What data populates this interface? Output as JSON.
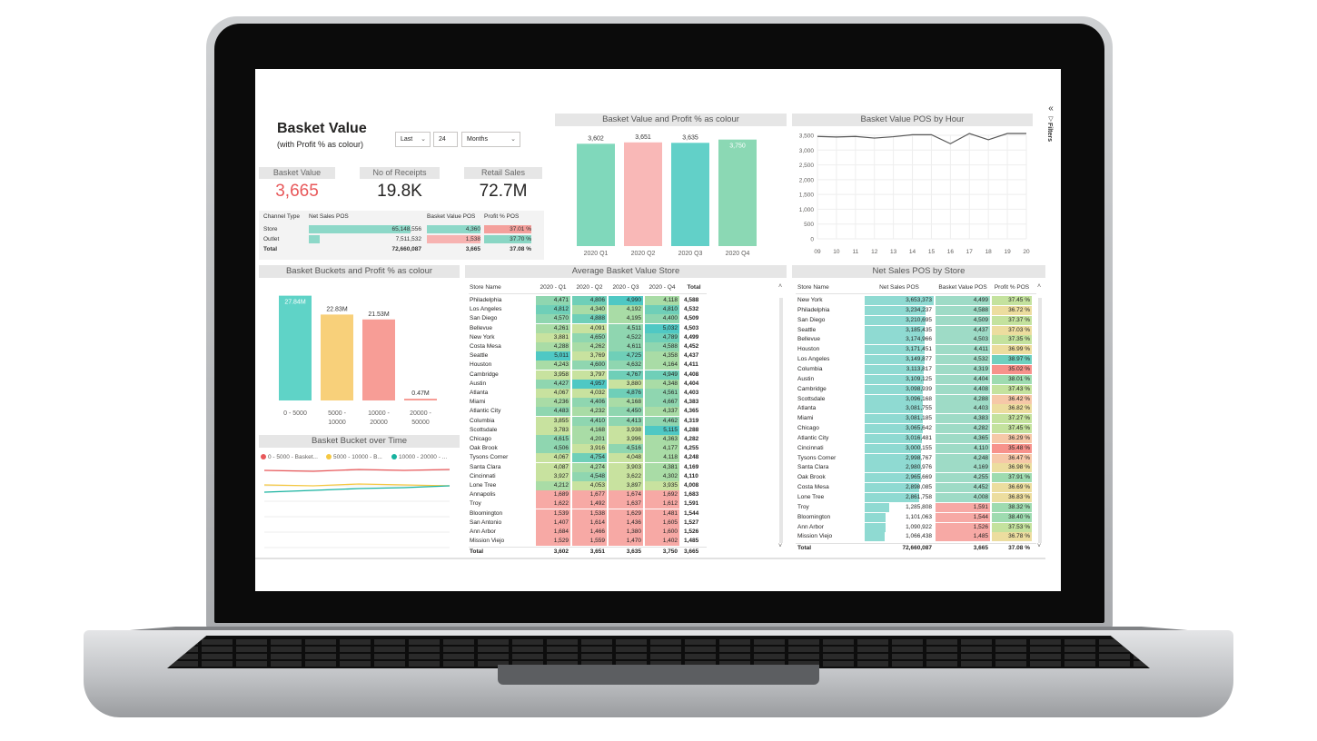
{
  "header": {
    "title": "Basket Value",
    "subtitle": "(with Profit % as colour)"
  },
  "filter_controls": {
    "period": "Last",
    "count": "24",
    "unit": "Months"
  },
  "filters_pane": {
    "label": "Filters",
    "collapse_glyph": "«"
  },
  "kpis": [
    {
      "label": "Basket Value",
      "value": "3,665",
      "color": "#e8585a"
    },
    {
      "label": "No of Receipts",
      "value": "19.8K",
      "color": "#252423"
    },
    {
      "label": "Retail Sales",
      "value": "72.7M",
      "color": "#252423"
    }
  ],
  "channel_table": {
    "headers": [
      "Channel Type",
      "Net Sales POS",
      "Basket Value POS",
      "Profit % POS"
    ],
    "rows": [
      {
        "name": "Store",
        "net": "65,148,556",
        "net_fraction": 0.9,
        "basket": "4,360",
        "profit": "37.01 %",
        "basket_color": "#8dd8c8",
        "profit_color": "#f4a09c"
      },
      {
        "name": "Outlet",
        "net": "7,511,532",
        "net_fraction": 0.1,
        "basket": "1,538",
        "profit": "37.70 %",
        "basket_color": "#f7b3b1",
        "profit_color": "#8ad6c4"
      }
    ],
    "total": {
      "name": "Total",
      "net": "72,660,087",
      "basket": "3,665",
      "profit": "37.08 %"
    }
  },
  "quarter_chart": {
    "title": "Basket Value and Profit % as colour",
    "chart_data": {
      "type": "bar",
      "categories": [
        "2020 Q1",
        "2020 Q2",
        "2020 Q3",
        "2020 Q4"
      ],
      "values": [
        3602,
        3651,
        3635,
        3750
      ],
      "labels": [
        "3,602",
        "3,651",
        "3,635",
        "3,750"
      ],
      "colors": [
        "#80d8bb",
        "#f9b8b7",
        "#62d0c8",
        "#8bd8b4"
      ],
      "ylim": [
        0,
        3900
      ]
    }
  },
  "hour_chart": {
    "title": "Basket Value POS by Hour",
    "chart_data": {
      "type": "line",
      "x": [
        "09",
        "10",
        "11",
        "12",
        "13",
        "14",
        "15",
        "16",
        "17",
        "18",
        "19",
        "20"
      ],
      "values": [
        3660,
        3640,
        3660,
        3600,
        3650,
        3720,
        3720,
        3400,
        3880,
        3540,
        3850,
        3830
      ],
      "yticks": [
        "3,500",
        "3,000",
        "2,500",
        "2,000",
        "1,500",
        "1,000",
        "500",
        "0"
      ],
      "ylim": [
        0,
        3700
      ]
    }
  },
  "bucket_chart": {
    "title": "Basket Buckets and Profit % as colour",
    "chart_data": {
      "type": "bar",
      "categories": [
        "0 - 5000",
        "5000 - 10000",
        "10000 - 20000",
        "20000 - 50000"
      ],
      "values": [
        27.84,
        22.83,
        21.53,
        0.47
      ],
      "labels": [
        "27.84M",
        "22.83M",
        "21.53M",
        "0.47M"
      ],
      "colors": [
        "#5fd3c7",
        "#f8d07a",
        "#f79d96",
        "#f79d96"
      ]
    }
  },
  "bucket_time": {
    "title": "Basket Bucket over Time",
    "legend": [
      {
        "label": "0 - 5000 - Basket...",
        "color": "#e8585a"
      },
      {
        "label": "5000 - 10000 - B...",
        "color": "#f5c842"
      },
      {
        "label": "10000 - 20000 - ...",
        "color": "#17b29f"
      }
    ]
  },
  "store_quarter": {
    "title": "Average Basket Value Store",
    "headers": [
      "Store Name",
      "2020 - Q1",
      "2020 - Q2",
      "2020 - Q3",
      "2020 - Q4",
      "Total"
    ],
    "rows": [
      [
        "Philadelphia",
        "4,471",
        "4,806",
        "4,990",
        "4,118",
        "4,588"
      ],
      [
        "Los Angeles",
        "4,812",
        "4,340",
        "4,192",
        "4,810",
        "4,532"
      ],
      [
        "San Diego",
        "4,570",
        "4,888",
        "4,195",
        "4,400",
        "4,509"
      ],
      [
        "Bellevue",
        "4,261",
        "4,091",
        "4,511",
        "5,032",
        "4,503"
      ],
      [
        "New York",
        "3,881",
        "4,650",
        "4,522",
        "4,789",
        "4,499"
      ],
      [
        "Costa Mesa",
        "4,288",
        "4,262",
        "4,611",
        "4,588",
        "4,452"
      ],
      [
        "Seattle",
        "5,011",
        "3,769",
        "4,725",
        "4,358",
        "4,437"
      ],
      [
        "Houston",
        "4,243",
        "4,600",
        "4,632",
        "4,164",
        "4,411"
      ],
      [
        "Cambridge",
        "3,958",
        "3,797",
        "4,767",
        "4,949",
        "4,408"
      ],
      [
        "Austin",
        "4,427",
        "4,957",
        "3,880",
        "4,348",
        "4,404"
      ],
      [
        "Atlanta",
        "4,067",
        "4,032",
        "4,876",
        "4,561",
        "4,403"
      ],
      [
        "Miami",
        "4,236",
        "4,406",
        "4,168",
        "4,667",
        "4,383"
      ],
      [
        "Atlantic City",
        "4,483",
        "4,232",
        "4,450",
        "4,337",
        "4,365"
      ],
      [
        "Columbia",
        "3,855",
        "4,410",
        "4,413",
        "4,462",
        "4,319"
      ],
      [
        "Scottsdale",
        "3,783",
        "4,168",
        "3,938",
        "5,115",
        "4,288"
      ],
      [
        "Chicago",
        "4,615",
        "4,201",
        "3,996",
        "4,363",
        "4,282"
      ],
      [
        "Oak Brook",
        "4,506",
        "3,916",
        "4,516",
        "4,177",
        "4,255"
      ],
      [
        "Tysons Corner",
        "4,067",
        "4,754",
        "4,048",
        "4,118",
        "4,248"
      ],
      [
        "Santa Clara",
        "4,087",
        "4,274",
        "3,903",
        "4,381",
        "4,169"
      ],
      [
        "Cincinnati",
        "3,927",
        "4,548",
        "3,622",
        "4,302",
        "4,110"
      ],
      [
        "Lone Tree",
        "4,212",
        "4,053",
        "3,897",
        "3,935",
        "4,008"
      ],
      [
        "Annapolis",
        "1,689",
        "1,677",
        "1,674",
        "1,692",
        "1,683"
      ],
      [
        "Troy",
        "1,622",
        "1,492",
        "1,637",
        "1,612",
        "1,591"
      ],
      [
        "Bloomington",
        "1,539",
        "1,538",
        "1,629",
        "1,481",
        "1,544"
      ],
      [
        "San Antonio",
        "1,407",
        "1,614",
        "1,436",
        "1,605",
        "1,527"
      ],
      [
        "Ann Arbor",
        "1,684",
        "1,466",
        "1,380",
        "1,600",
        "1,526"
      ],
      [
        "Mission Viejo",
        "1,529",
        "1,559",
        "1,470",
        "1,402",
        "1,485"
      ]
    ],
    "total": [
      "Total",
      "3,602",
      "3,651",
      "3,635",
      "3,750",
      "3,665"
    ]
  },
  "store_sales": {
    "title": "Net Sales POS by Store",
    "headers": [
      "Store Name",
      "Net Sales POS",
      "Basket Value POS",
      "Profit % POS"
    ],
    "rows": [
      [
        "New York",
        "3,653,373",
        "4,499",
        "37.45 %"
      ],
      [
        "Philadelphia",
        "3,234,237",
        "4,588",
        "36.72 %"
      ],
      [
        "San Diego",
        "3,210,695",
        "4,509",
        "37.37 %"
      ],
      [
        "Seattle",
        "3,185,435",
        "4,437",
        "37.03 %"
      ],
      [
        "Bellevue",
        "3,174,966",
        "4,503",
        "37.35 %"
      ],
      [
        "Houston",
        "3,171,451",
        "4,411",
        "36.99 %"
      ],
      [
        "Los Angeles",
        "3,149,877",
        "4,532",
        "38.97 %"
      ],
      [
        "Columbia",
        "3,113,817",
        "4,319",
        "35.02 %"
      ],
      [
        "Austin",
        "3,109,125",
        "4,404",
        "38.01 %"
      ],
      [
        "Cambridge",
        "3,098,939",
        "4,408",
        "37.43 %"
      ],
      [
        "Scottsdale",
        "3,096,168",
        "4,288",
        "36.42 %"
      ],
      [
        "Atlanta",
        "3,081,755",
        "4,403",
        "36.82 %"
      ],
      [
        "Miami",
        "3,081,185",
        "4,383",
        "37.27 %"
      ],
      [
        "Chicago",
        "3,065,642",
        "4,282",
        "37.45 %"
      ],
      [
        "Atlantic City",
        "3,016,481",
        "4,365",
        "36.29 %"
      ],
      [
        "Cincinnati",
        "3,000,155",
        "4,110",
        "35.48 %"
      ],
      [
        "Tysons Corner",
        "2,998,767",
        "4,248",
        "36.47 %"
      ],
      [
        "Santa Clara",
        "2,980,976",
        "4,169",
        "36.98 %"
      ],
      [
        "Oak Brook",
        "2,965,669",
        "4,255",
        "37.91 %"
      ],
      [
        "Costa Mesa",
        "2,898,085",
        "4,452",
        "36.69 %"
      ],
      [
        "Lone Tree",
        "2,861,758",
        "4,008",
        "36.83 %"
      ],
      [
        "Troy",
        "1,285,808",
        "1,591",
        "38.32 %"
      ],
      [
        "Bloomington",
        "1,101,063",
        "1,544",
        "38.40 %"
      ],
      [
        "Ann Arbor",
        "1,090,922",
        "1,526",
        "37.53 %"
      ],
      [
        "Mission Viejo",
        "1,066,438",
        "1,485",
        "36.78 %"
      ]
    ],
    "total": [
      "Total",
      "72,660,087",
      "3,665",
      "37.08 %"
    ]
  }
}
